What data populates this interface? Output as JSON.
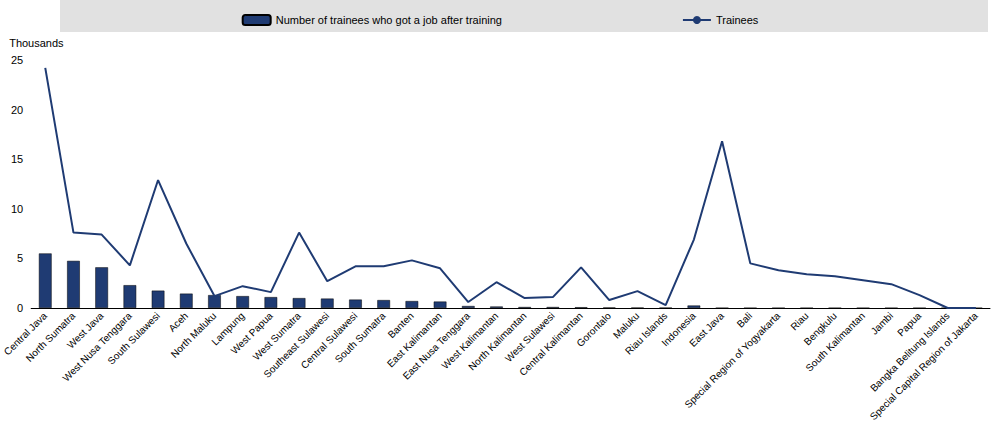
{
  "chart_data": {
    "type": "bar",
    "y_label": "Thousands",
    "categories": [
      "Central Java",
      "North Sumatra",
      "West Java",
      "West Nusa Tenggara",
      "South Sulawesi",
      "Aceh",
      "North Maluku",
      "Lampung",
      "West Papua",
      "West Sumatra",
      "Southeast Sulawesi",
      "Central Sulawesi",
      "South Sumatra",
      "Banten",
      "East Kalimantan",
      "East Nusa Tenggara",
      "West Kalimantan",
      "North Kalimantan",
      "West Sulawesi",
      "Central Kalimantan",
      "Gorontalo",
      "Maluku",
      "Riau Islands",
      "Indonesia",
      "East Java",
      "Bali",
      "Special Region of Yogyakarta",
      "Riau",
      "Bengkulu",
      "South Kalimantan",
      "Jambi",
      "Papua",
      "Bangka Belitung Islands",
      "Special Capital Region of Jakarta"
    ],
    "series": [
      {
        "name": "Number of trainees who got a job after training",
        "type": "bar",
        "color": "#1f3b73",
        "values": [
          5.5,
          4.75,
          4.1,
          2.3,
          1.75,
          1.45,
          1.3,
          1.2,
          1.1,
          1.0,
          0.95,
          0.85,
          0.8,
          0.7,
          0.65,
          0.2,
          0.15,
          0.1,
          0.1,
          0.08,
          0.05,
          0.03,
          0.02,
          0.25,
          0,
          0,
          0,
          0,
          0,
          0,
          0,
          0,
          0,
          0
        ]
      },
      {
        "name": "Trainees",
        "type": "line",
        "color": "#1f3b73",
        "values": [
          24.2,
          7.6,
          7.4,
          4.3,
          12.9,
          6.5,
          1.2,
          2.2,
          1.6,
          7.6,
          2.7,
          4.2,
          4.2,
          4.8,
          4.0,
          0.6,
          2.6,
          1.0,
          1.1,
          4.1,
          0.8,
          1.7,
          0.3,
          6.9,
          16.8,
          4.5,
          3.8,
          3.4,
          3.2,
          2.8,
          2.4,
          1.3,
          0,
          0
        ]
      }
    ],
    "ylim": [
      0,
      25
    ],
    "yticks": [
      0,
      5,
      10,
      15,
      20,
      25
    ],
    "grid": false,
    "legend": "top"
  }
}
